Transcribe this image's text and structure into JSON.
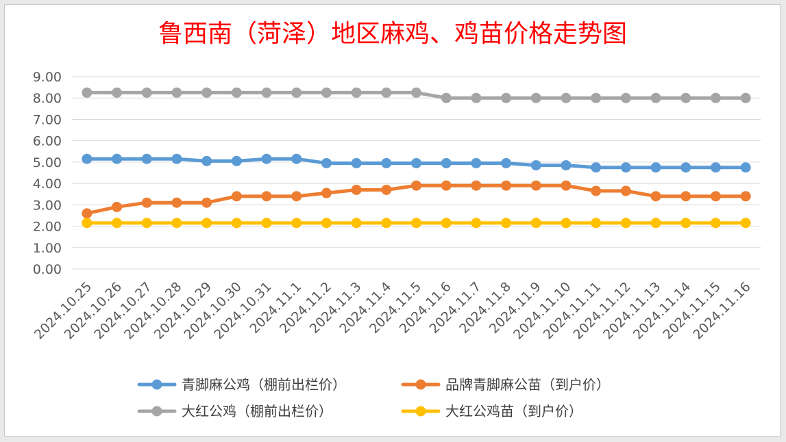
{
  "chart_data": {
    "type": "line",
    "title": "鲁西南（菏泽）地区麻鸡、鸡苗价格走势图",
    "xlabel": "",
    "ylabel": "",
    "x": [
      "2024.10.25",
      "2024.10.26",
      "2024.10.27",
      "2024.10.28",
      "2024.10.29",
      "2024.10.30",
      "2024.10.31",
      "2024.11.1",
      "2024.11.2",
      "2024.11.3",
      "2024.11.4",
      "2024.11.5",
      "2024.11.6",
      "2024.11.7",
      "2024.11.8",
      "2024.11.9",
      "2024.11.10",
      "2024.11.11",
      "2024.11.12",
      "2024.11.13",
      "2024.11.14",
      "2024.11.15",
      "2024.11.16"
    ],
    "y_ticks": [
      "0.00",
      "1.00",
      "2.00",
      "3.00",
      "4.00",
      "5.00",
      "6.00",
      "7.00",
      "8.00",
      "9.00"
    ],
    "ylim": [
      0,
      9
    ],
    "grid": "horizontal",
    "legend_position": "bottom",
    "series": [
      {
        "name": "青脚麻公鸡（棚前出栏价）",
        "color": "#5b9bd5",
        "values": [
          5.15,
          5.15,
          5.15,
          5.15,
          5.05,
          5.05,
          5.15,
          5.15,
          4.95,
          4.95,
          4.95,
          4.95,
          4.95,
          4.95,
          4.95,
          4.85,
          4.85,
          4.75,
          4.75,
          4.75,
          4.75,
          4.75,
          4.75
        ]
      },
      {
        "name": "品牌青脚麻公苗（到户价）",
        "color": "#ed7d31",
        "values": [
          2.6,
          2.9,
          3.1,
          3.1,
          3.1,
          3.4,
          3.4,
          3.4,
          3.55,
          3.7,
          3.7,
          3.9,
          3.9,
          3.9,
          3.9,
          3.9,
          3.9,
          3.65,
          3.65,
          3.4,
          3.4,
          3.4,
          3.4
        ]
      },
      {
        "name": "大红公鸡（棚前出栏价）",
        "color": "#a5a5a5",
        "values": [
          8.25,
          8.25,
          8.25,
          8.25,
          8.25,
          8.25,
          8.25,
          8.25,
          8.25,
          8.25,
          8.25,
          8.25,
          8.0,
          8.0,
          8.0,
          8.0,
          8.0,
          8.0,
          8.0,
          8.0,
          8.0,
          8.0,
          8.0
        ]
      },
      {
        "name": "大红公鸡苗（到户价）",
        "color": "#ffc000",
        "values": [
          2.15,
          2.15,
          2.15,
          2.15,
          2.15,
          2.15,
          2.15,
          2.15,
          2.15,
          2.15,
          2.15,
          2.15,
          2.15,
          2.15,
          2.15,
          2.15,
          2.15,
          2.15,
          2.15,
          2.15,
          2.15,
          2.15,
          2.15
        ]
      }
    ]
  }
}
